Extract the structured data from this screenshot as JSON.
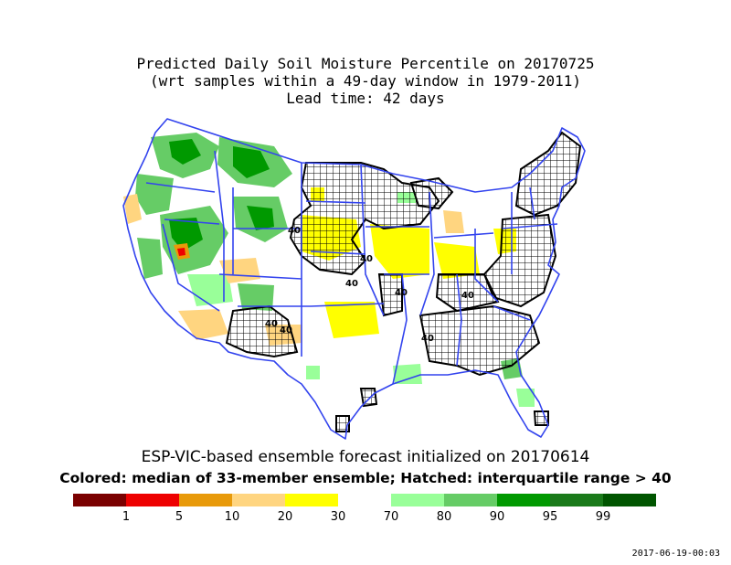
{
  "title": {
    "line1": "Predicted Daily Soil Moisture Percentile on 20170725",
    "line2": "(wrt samples within a 49-day window in 1979-2011)",
    "line3": "Lead time: 42 days"
  },
  "subtitle1": "ESP-VIC-based ensemble forecast initialized on 20170614",
  "subtitle2": "Colored: median of 33-member ensemble; Hatched: interquartile range > 40",
  "contour_label": "40",
  "legend": {
    "bins": [
      {
        "color": "#7a0000",
        "label": "1"
      },
      {
        "color": "#ee0000",
        "label": "5"
      },
      {
        "color": "#e89a0a",
        "label": "10"
      },
      {
        "color": "#ffd580",
        "label": "20"
      },
      {
        "color": "#ffff00",
        "label": "30"
      },
      {
        "color": "#ffffff",
        "label": "70"
      },
      {
        "color": "#99ff99",
        "label": "80"
      },
      {
        "color": "#66cc66",
        "label": "90"
      },
      {
        "color": "#009900",
        "label": "95"
      },
      {
        "color": "#1a7a1a",
        "label": "99"
      },
      {
        "color": "#005500",
        "label": ""
      }
    ]
  },
  "colors": {
    "boundary": "#3344ee",
    "dry_30": "#ffff00",
    "dry_20": "#ffd580",
    "dry_10": "#e89a0a",
    "dry_5": "#ee0000",
    "wet_80": "#99ff99",
    "wet_90": "#66cc66",
    "wet_95": "#009900",
    "wet_99": "#1a7a1a"
  },
  "timestamp": "2017-06-19-00:03"
}
